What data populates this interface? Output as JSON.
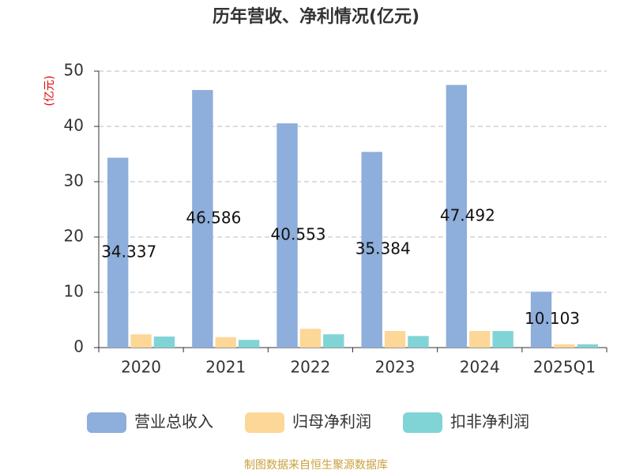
{
  "chart_data": {
    "type": "bar",
    "title": "历年营收、净利情况(亿元)",
    "y_label": "(亿元)",
    "categories": [
      "2020",
      "2021",
      "2022",
      "2023",
      "2024",
      "2025Q1"
    ],
    "series": [
      {
        "name": "营业总收入",
        "color": "#8eaedb",
        "values": [
          34.337,
          46.586,
          40.553,
          35.384,
          47.492,
          10.103
        ],
        "labels": true
      },
      {
        "name": "归母净利润",
        "color": "#fdd797",
        "values": [
          2.4,
          1.9,
          3.4,
          3.0,
          3.0,
          0.6
        ]
      },
      {
        "name": "扣非净利润",
        "color": "#80d4d6",
        "values": [
          2.0,
          1.4,
          2.4,
          2.1,
          3.0,
          0.6
        ]
      }
    ],
    "ylim": [
      0,
      50
    ],
    "yticks": [
      0,
      10,
      20,
      30,
      40,
      50
    ],
    "grid": true,
    "legend": "bottom",
    "source": "制图数据来自恒生聚源数据库"
  }
}
